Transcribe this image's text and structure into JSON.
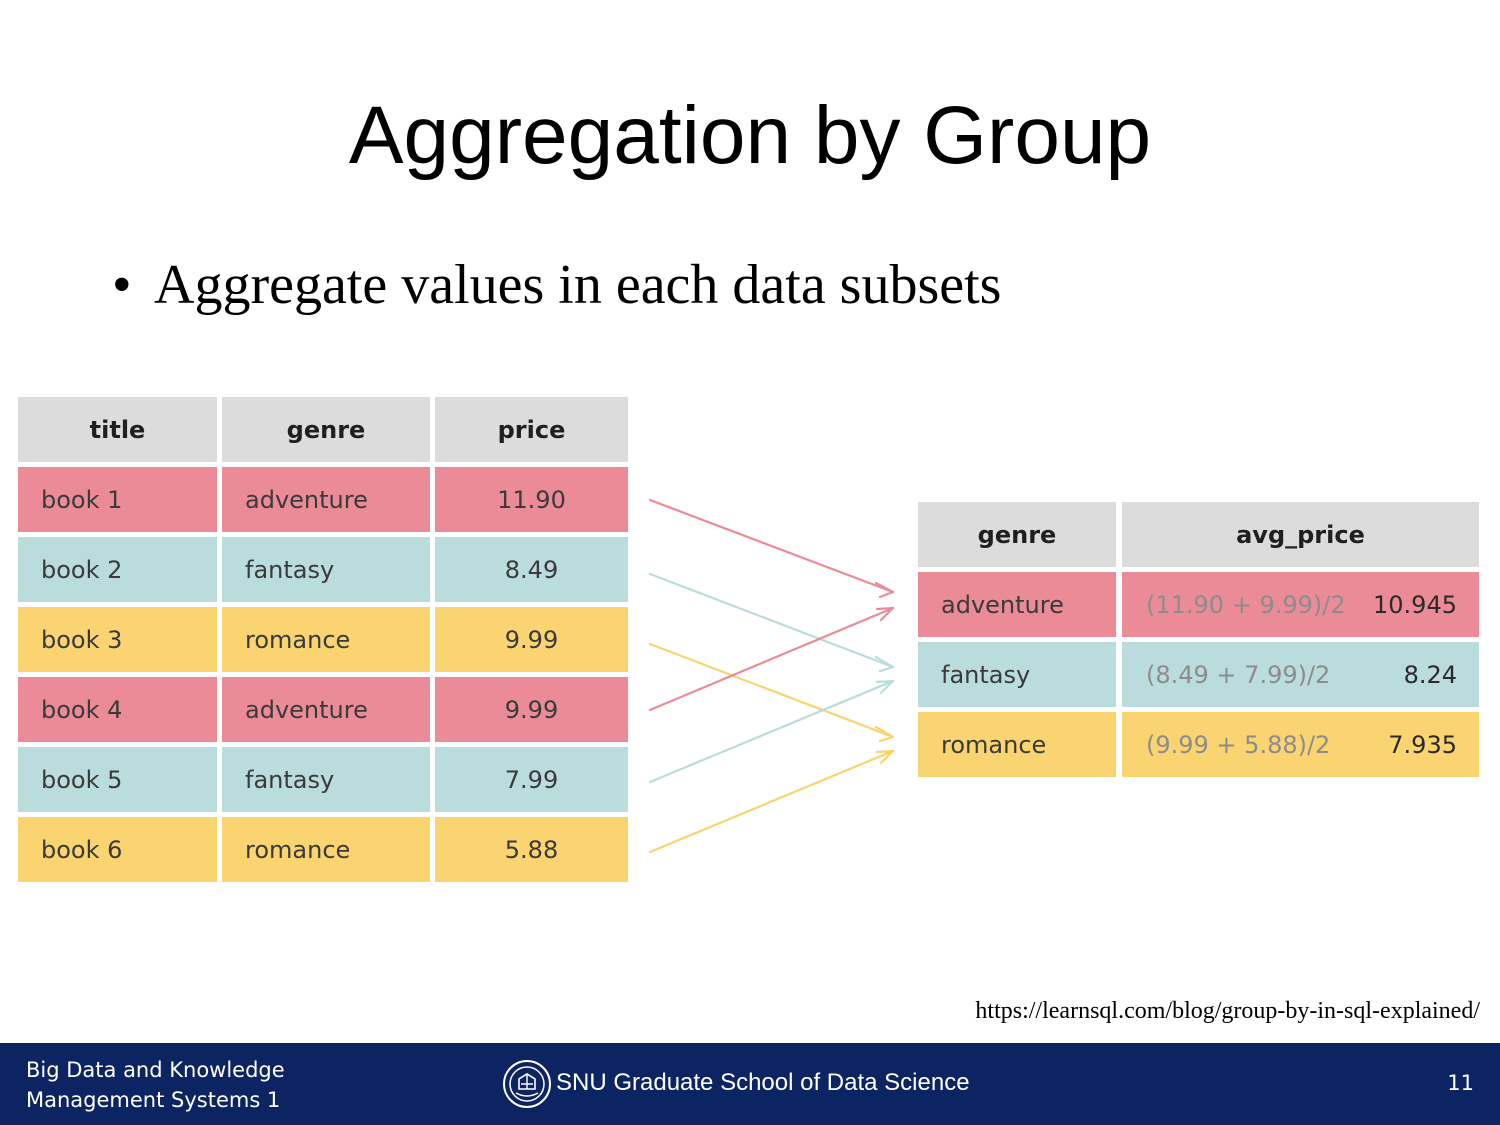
{
  "slide": {
    "title": "Aggregation by Group",
    "bullet": "Aggregate values in each data subsets",
    "source": "https://learnsql.com/blog/group-by-in-sql-explained/"
  },
  "colors": {
    "adventure": "#eb8b98",
    "fantasy": "#badcdd",
    "romance": "#f9d470",
    "header": "#dcdcdc",
    "footer": "#0c2461"
  },
  "books_table": {
    "headers": [
      "title",
      "genre",
      "price"
    ],
    "rows": [
      {
        "title": "book 1",
        "genre": "adventure",
        "price": "11.90"
      },
      {
        "title": "book 2",
        "genre": "fantasy",
        "price": "8.49"
      },
      {
        "title": "book 3",
        "genre": "romance",
        "price": "9.99"
      },
      {
        "title": "book 4",
        "genre": "adventure",
        "price": "9.99"
      },
      {
        "title": "book 5",
        "genre": "fantasy",
        "price": "7.99"
      },
      {
        "title": "book 6",
        "genre": "romance",
        "price": "5.88"
      }
    ]
  },
  "result_table": {
    "headers": [
      "genre",
      "avg_price"
    ],
    "rows": [
      {
        "genre": "adventure",
        "calc": "(11.90 + 9.99)/2",
        "avg": "10.945"
      },
      {
        "genre": "fantasy",
        "calc": "(8.49 + 7.99)/2",
        "avg": "8.24"
      },
      {
        "genre": "romance",
        "calc": "(9.99 + 5.88)/2",
        "avg": "7.935"
      }
    ]
  },
  "footer": {
    "course_line1": "Big Data and Knowledge",
    "course_line2": "Management Systems 1",
    "school": "SNU Graduate School of Data Science",
    "page": "11",
    "logo_icon": "snu-emblem-icon"
  }
}
